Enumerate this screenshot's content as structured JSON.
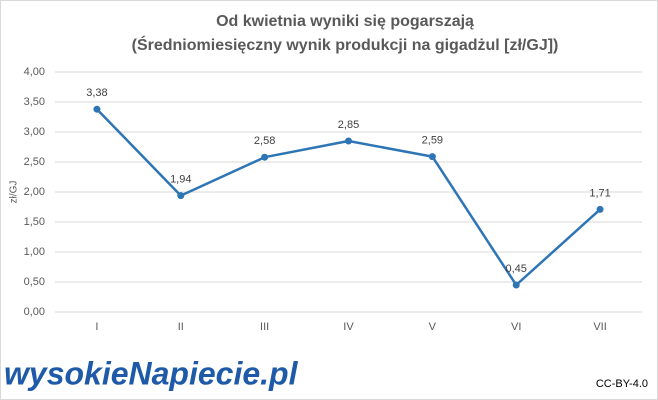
{
  "chart_data": {
    "type": "line",
    "title": "Od kwietnia wyniki się pogarszają",
    "subtitle": "(Średniomiesięczny wynik produkcji na gigadżul [zł/GJ])",
    "y_label": "zł/GJ",
    "categories": [
      "I",
      "II",
      "III",
      "IV",
      "V",
      "VI",
      "VII"
    ],
    "values": [
      3.38,
      1.94,
      2.58,
      2.85,
      2.59,
      0.45,
      1.71
    ],
    "value_labels": [
      "3,38",
      "1,94",
      "2,58",
      "2,85",
      "2,59",
      "0,45",
      "1,71"
    ],
    "color": "#2e75b6",
    "ylim": [
      0,
      4
    ],
    "yticks": [
      {
        "value": 0,
        "label": "0,00"
      },
      {
        "value": 0.5,
        "label": "0,50"
      },
      {
        "value": 1,
        "label": "1,00"
      },
      {
        "value": 1.5,
        "label": "1,50"
      },
      {
        "value": 2,
        "label": "2,00"
      },
      {
        "value": 2.5,
        "label": "2,50"
      },
      {
        "value": 3,
        "label": "3,00"
      },
      {
        "value": 3.5,
        "label": "3,50"
      },
      {
        "value": 4,
        "label": "4,00"
      }
    ],
    "grid": true
  },
  "footer": {
    "logo": "wysokieNapiecie.pl",
    "license": "CC-BY-4.0"
  }
}
